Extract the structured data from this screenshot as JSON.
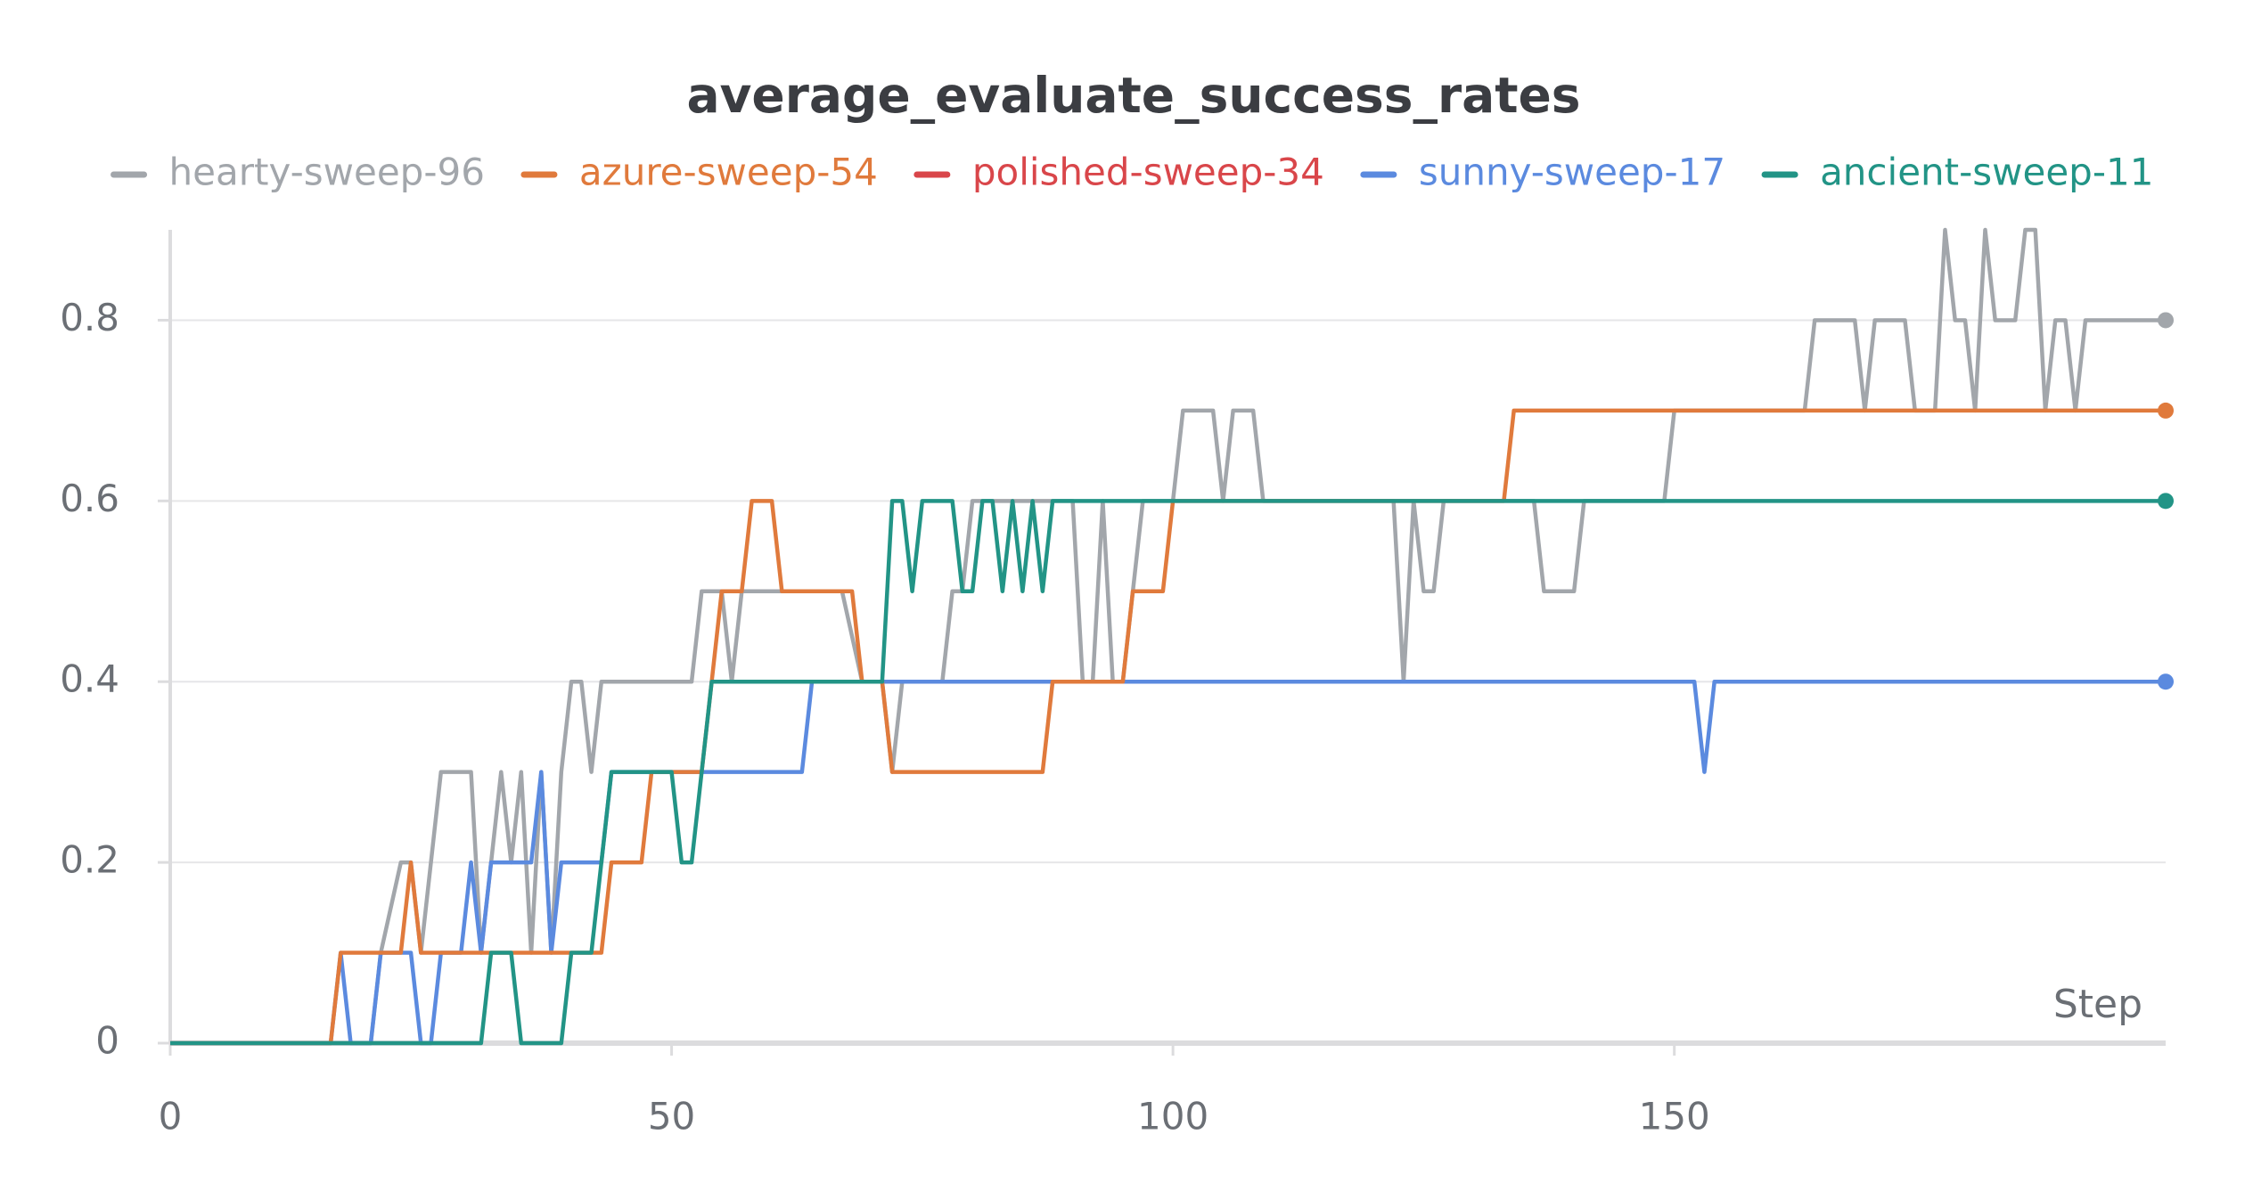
{
  "chart_data": {
    "type": "line",
    "title": "average_evaluate_success_rates",
    "x_label": "Step",
    "xlim": [
      0,
      199
    ],
    "xticks": [
      0,
      50,
      100,
      150
    ],
    "ylim": [
      0,
      0.9
    ],
    "yticks": [
      0,
      0.2,
      0.4,
      0.6,
      0.8
    ],
    "grid": true,
    "legend": "top",
    "series": [
      {
        "name": "hearty-sweep-96",
        "color": "#a2a6ab",
        "x": [
          0,
          20,
          21,
          23,
          24,
          25,
          27,
          30,
          31,
          33,
          34,
          35,
          36,
          37,
          38,
          39,
          40,
          41,
          42,
          43,
          52,
          53,
          55,
          56,
          57,
          58,
          67,
          69,
          71,
          72,
          73,
          77,
          78,
          79,
          80,
          90,
          91,
          92,
          93,
          94,
          95,
          97,
          100,
          101,
          104,
          105,
          106,
          108,
          109,
          122,
          123,
          124,
          125,
          126,
          127,
          136,
          137,
          140,
          141,
          149,
          150,
          163,
          164,
          168,
          169,
          170,
          173,
          174,
          176,
          177,
          178,
          179,
          180,
          181,
          182,
          184,
          185,
          186,
          187,
          188,
          189,
          190,
          191,
          199
        ],
        "values": [
          0,
          0,
          0.1,
          0.2,
          0.2,
          0.1,
          0.3,
          0.3,
          0.1,
          0.3,
          0.2,
          0.3,
          0.1,
          0.3,
          0.1,
          0.3,
          0.4,
          0.4,
          0.3,
          0.4,
          0.4,
          0.5,
          0.5,
          0.4,
          0.5,
          0.5,
          0.5,
          0.4,
          0.4,
          0.3,
          0.4,
          0.4,
          0.5,
          0.5,
          0.6,
          0.6,
          0.4,
          0.4,
          0.6,
          0.4,
          0.4,
          0.6,
          0.6,
          0.7,
          0.7,
          0.6,
          0.7,
          0.7,
          0.6,
          0.6,
          0.4,
          0.6,
          0.5,
          0.5,
          0.6,
          0.6,
          0.5,
          0.5,
          0.6,
          0.6,
          0.7,
          0.7,
          0.8,
          0.8,
          0.7,
          0.8,
          0.8,
          0.7,
          0.7,
          0.9,
          0.8,
          0.8,
          0.7,
          0.9,
          0.8,
          0.8,
          0.9,
          0.9,
          0.7,
          0.8,
          0.8,
          0.7,
          0.8,
          0.8
        ]
      },
      {
        "name": "azure-sweep-54",
        "color": "#e07a3c",
        "x": [
          0,
          16,
          17,
          23,
          24,
          25,
          43,
          44,
          47,
          48,
          53,
          54,
          55,
          57,
          58,
          60,
          61,
          68,
          69,
          71,
          72,
          87,
          88,
          95,
          96,
          99,
          100,
          133,
          134,
          199
        ],
        "values": [
          0,
          0,
          0.1,
          0.1,
          0.2,
          0.1,
          0.1,
          0.2,
          0.2,
          0.3,
          0.3,
          0.4,
          0.5,
          0.5,
          0.6,
          0.6,
          0.5,
          0.5,
          0.4,
          0.4,
          0.3,
          0.3,
          0.4,
          0.4,
          0.5,
          0.5,
          0.6,
          0.6,
          0.7,
          0.7
        ]
      },
      {
        "name": "polished-sweep-34",
        "color": "#d9464a",
        "x": [],
        "values": []
      },
      {
        "name": "sunny-sweep-17",
        "color": "#5b8adf",
        "x": [
          0,
          16,
          17,
          18,
          20,
          21,
          24,
          25,
          26,
          27,
          29,
          30,
          31,
          32,
          36,
          37,
          38,
          39,
          43,
          44,
          63,
          64,
          152,
          153,
          154,
          199
        ],
        "values": [
          0,
          0,
          0.1,
          0,
          0,
          0.1,
          0.1,
          0,
          0,
          0.1,
          0.1,
          0.2,
          0.1,
          0.2,
          0.2,
          0.3,
          0.1,
          0.2,
          0.2,
          0.3,
          0.3,
          0.4,
          0.4,
          0.3,
          0.4,
          0.4
        ]
      },
      {
        "name": "ancient-sweep-11",
        "color": "#229486",
        "x": [
          0,
          31,
          32,
          34,
          35,
          39,
          40,
          42,
          44,
          50,
          51,
          52,
          53,
          54,
          71,
          72,
          73,
          74,
          75,
          78,
          79,
          80,
          81,
          82,
          83,
          84,
          85,
          86,
          87,
          88,
          199
        ],
        "values": [
          0,
          0,
          0.1,
          0.1,
          0,
          0,
          0.1,
          0.1,
          0.3,
          0.3,
          0.2,
          0.2,
          0.3,
          0.4,
          0.4,
          0.6,
          0.6,
          0.5,
          0.6,
          0.6,
          0.5,
          0.5,
          0.6,
          0.6,
          0.5,
          0.6,
          0.5,
          0.6,
          0.5,
          0.6,
          0.6
        ]
      }
    ]
  }
}
